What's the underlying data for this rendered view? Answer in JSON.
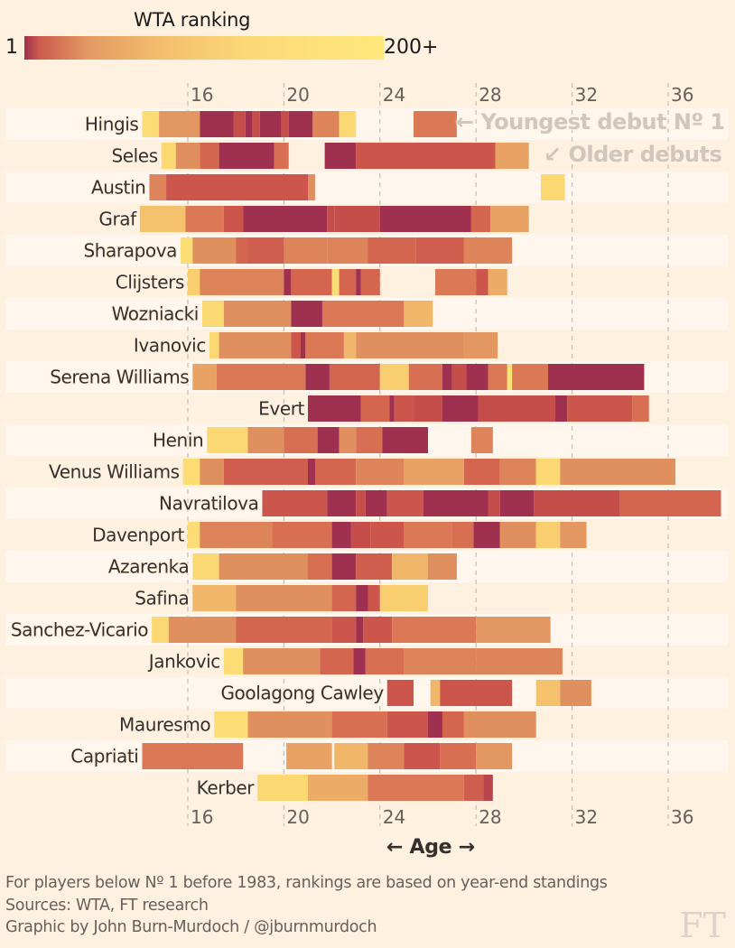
{
  "legend": {
    "title": "WTA ranking",
    "min_label": "1",
    "max_label": "200+"
  },
  "chart_data": {
    "type": "heatmap",
    "title": "WTA ranking",
    "xlabel": "← Age →",
    "ylabel": "",
    "x_ticks": [
      16,
      20,
      24,
      28,
      32,
      36
    ],
    "x_range": [
      12.9,
      38.9
    ],
    "grid": true,
    "color_scale": {
      "min_label": "1",
      "max_label": "200+",
      "colors": [
        "#a0304f",
        "#c9514a",
        "#d76b52",
        "#e08f5e",
        "#edae68",
        "#fbd671",
        "#fee77a"
      ]
    },
    "value_note": "rank level 0 = No 1 (darkest), 1 = 200+ (palest)",
    "players": [
      {
        "name": "Hingis",
        "segments": [
          [
            14.1,
            14.8,
            0.9
          ],
          [
            14.8,
            16.5,
            0.55
          ],
          [
            16.5,
            17.9,
            0.0
          ],
          [
            17.9,
            18.4,
            0.15
          ],
          [
            18.4,
            18.7,
            0.0
          ],
          [
            18.7,
            19.0,
            0.15
          ],
          [
            19.0,
            19.9,
            0.0
          ],
          [
            19.9,
            20.2,
            0.15
          ],
          [
            20.2,
            21.2,
            0.0
          ],
          [
            21.2,
            22.3,
            0.45
          ],
          [
            22.3,
            23.0,
            0.85
          ],
          [
            25.4,
            27.2,
            0.4
          ]
        ]
      },
      {
        "name": "Seles",
        "segments": [
          [
            14.9,
            15.5,
            0.85
          ],
          [
            15.5,
            16.5,
            0.5
          ],
          [
            16.5,
            17.3,
            0.3
          ],
          [
            17.3,
            19.6,
            0.0
          ],
          [
            19.6,
            20.2,
            0.35
          ],
          [
            21.7,
            23.0,
            0.0
          ],
          [
            23.0,
            28.8,
            0.2
          ],
          [
            28.8,
            30.2,
            0.6
          ]
        ]
      },
      {
        "name": "Austin",
        "segments": [
          [
            14.4,
            15.1,
            0.45
          ],
          [
            15.1,
            21.0,
            0.2
          ],
          [
            21.0,
            21.3,
            0.5
          ],
          [
            30.7,
            31.7,
            0.85
          ]
        ]
      },
      {
        "name": "Graf",
        "segments": [
          [
            14.0,
            15.9,
            0.75
          ],
          [
            15.9,
            17.5,
            0.4
          ],
          [
            17.5,
            18.3,
            0.2
          ],
          [
            18.3,
            21.8,
            0.0
          ],
          [
            21.8,
            22.1,
            0.15
          ],
          [
            22.1,
            24.0,
            0.15
          ],
          [
            24.0,
            26.0,
            0.0
          ],
          [
            26.0,
            27.8,
            0.0
          ],
          [
            27.8,
            28.6,
            0.3
          ],
          [
            28.6,
            30.2,
            0.6
          ]
        ]
      },
      {
        "name": "Sharapova",
        "segments": [
          [
            15.7,
            16.2,
            0.9
          ],
          [
            16.2,
            18.0,
            0.5
          ],
          [
            18.0,
            18.5,
            0.3
          ],
          [
            18.5,
            20.0,
            0.25
          ],
          [
            20.0,
            21.8,
            0.45
          ],
          [
            21.8,
            23.5,
            0.45
          ],
          [
            23.5,
            25.5,
            0.3
          ],
          [
            25.5,
            27.5,
            0.25
          ],
          [
            27.5,
            29.5,
            0.45
          ]
        ]
      },
      {
        "name": "Clijsters",
        "segments": [
          [
            16.0,
            16.5,
            0.8
          ],
          [
            16.5,
            20.0,
            0.45
          ],
          [
            20.0,
            20.3,
            0.0
          ],
          [
            20.3,
            22.0,
            0.3
          ],
          [
            22.0,
            22.3,
            0.9
          ],
          [
            22.3,
            23.0,
            0.3
          ],
          [
            23.0,
            23.2,
            0.0
          ],
          [
            23.2,
            24.0,
            0.3
          ],
          [
            26.3,
            28.0,
            0.4
          ],
          [
            28.0,
            28.5,
            0.2
          ],
          [
            28.5,
            29.3,
            0.65
          ]
        ]
      },
      {
        "name": "Wozniacki",
        "segments": [
          [
            16.6,
            17.5,
            0.85
          ],
          [
            17.5,
            20.3,
            0.5
          ],
          [
            20.3,
            21.6,
            0.0
          ],
          [
            21.6,
            25.0,
            0.4
          ],
          [
            25.0,
            26.2,
            0.7
          ]
        ]
      },
      {
        "name": "Ivanovic",
        "segments": [
          [
            16.9,
            17.3,
            0.85
          ],
          [
            17.3,
            20.3,
            0.5
          ],
          [
            20.3,
            20.7,
            0.2
          ],
          [
            20.7,
            20.9,
            0.0
          ],
          [
            20.9,
            22.5,
            0.4
          ],
          [
            22.5,
            23.0,
            0.7
          ],
          [
            23.0,
            27.5,
            0.5
          ],
          [
            27.5,
            28.9,
            0.55
          ]
        ]
      },
      {
        "name": "Serena Williams",
        "segments": [
          [
            16.2,
            17.2,
            0.6
          ],
          [
            17.2,
            20.9,
            0.4
          ],
          [
            20.9,
            21.9,
            0.0
          ],
          [
            21.9,
            24.0,
            0.3
          ],
          [
            24.0,
            25.2,
            0.8
          ],
          [
            25.2,
            26.6,
            0.35
          ],
          [
            26.6,
            27.0,
            0.0
          ],
          [
            27.0,
            27.6,
            0.15
          ],
          [
            27.6,
            28.5,
            0.0
          ],
          [
            28.5,
            29.3,
            0.4
          ],
          [
            29.3,
            29.5,
            0.95
          ],
          [
            29.5,
            31.0,
            0.4
          ],
          [
            31.0,
            35.0,
            0.0
          ]
        ]
      },
      {
        "name": "Evert",
        "segments": [
          [
            21.0,
            23.2,
            0.0
          ],
          [
            23.2,
            24.4,
            0.3
          ],
          [
            24.4,
            24.6,
            0.0
          ],
          [
            24.6,
            25.4,
            0.2
          ],
          [
            25.4,
            26.6,
            0.15
          ],
          [
            26.6,
            28.1,
            0.0
          ],
          [
            28.1,
            31.3,
            0.15
          ],
          [
            31.3,
            31.8,
            0.0
          ],
          [
            31.8,
            34.5,
            0.2
          ],
          [
            34.5,
            35.2,
            0.35
          ]
        ]
      },
      {
        "name": "Henin",
        "segments": [
          [
            16.8,
            18.5,
            0.85
          ],
          [
            18.5,
            20.0,
            0.5
          ],
          [
            20.0,
            21.4,
            0.35
          ],
          [
            21.4,
            22.3,
            0.0
          ],
          [
            22.3,
            23.0,
            0.5
          ],
          [
            23.0,
            24.1,
            0.35
          ],
          [
            24.1,
            26.0,
            0.0
          ],
          [
            27.8,
            28.7,
            0.45
          ]
        ]
      },
      {
        "name": "Venus Williams",
        "segments": [
          [
            15.8,
            16.5,
            0.9
          ],
          [
            16.5,
            17.5,
            0.5
          ],
          [
            17.5,
            21.0,
            0.25
          ],
          [
            21.0,
            21.3,
            0.0
          ],
          [
            21.3,
            23.0,
            0.3
          ],
          [
            23.0,
            25.0,
            0.45
          ],
          [
            25.0,
            27.5,
            0.6
          ],
          [
            27.5,
            29.0,
            0.3
          ],
          [
            29.0,
            30.5,
            0.45
          ],
          [
            30.5,
            31.5,
            0.85
          ],
          [
            31.5,
            36.3,
            0.5
          ]
        ]
      },
      {
        "name": "Navratilova",
        "segments": [
          [
            19.1,
            21.8,
            0.2
          ],
          [
            21.8,
            23.0,
            0.0
          ],
          [
            23.0,
            23.4,
            0.15
          ],
          [
            23.4,
            24.3,
            0.0
          ],
          [
            24.3,
            25.8,
            0.2
          ],
          [
            25.8,
            28.5,
            0.0
          ],
          [
            28.5,
            29.0,
            0.15
          ],
          [
            29.0,
            30.4,
            0.0
          ],
          [
            30.4,
            34.0,
            0.15
          ],
          [
            34.0,
            38.2,
            0.3
          ]
        ]
      },
      {
        "name": "Davenport",
        "segments": [
          [
            16.0,
            16.5,
            0.9
          ],
          [
            16.5,
            19.5,
            0.45
          ],
          [
            19.5,
            22.0,
            0.35
          ],
          [
            22.0,
            22.8,
            0.0
          ],
          [
            22.8,
            23.6,
            0.15
          ],
          [
            23.6,
            25.0,
            0.2
          ],
          [
            25.0,
            27.0,
            0.4
          ],
          [
            27.0,
            27.9,
            0.35
          ],
          [
            27.9,
            29.0,
            0.0
          ],
          [
            29.0,
            30.5,
            0.5
          ],
          [
            30.5,
            31.5,
            0.8
          ],
          [
            31.5,
            32.6,
            0.55
          ]
        ]
      },
      {
        "name": "Azarenka",
        "segments": [
          [
            16.2,
            17.3,
            0.85
          ],
          [
            17.3,
            21.0,
            0.5
          ],
          [
            21.0,
            22.0,
            0.35
          ],
          [
            22.0,
            23.0,
            0.0
          ],
          [
            23.0,
            24.5,
            0.25
          ],
          [
            24.5,
            26.0,
            0.7
          ],
          [
            26.0,
            27.2,
            0.5
          ]
        ]
      },
      {
        "name": "Safina",
        "segments": [
          [
            16.2,
            18.0,
            0.7
          ],
          [
            18.0,
            22.0,
            0.5
          ],
          [
            22.0,
            23.0,
            0.3
          ],
          [
            23.0,
            23.5,
            0.0
          ],
          [
            23.5,
            24.0,
            0.2
          ],
          [
            24.0,
            26.0,
            0.8
          ]
        ]
      },
      {
        "name": "Sanchez-Vicario",
        "segments": [
          [
            14.5,
            15.2,
            0.85
          ],
          [
            15.2,
            18.0,
            0.5
          ],
          [
            18.0,
            22.0,
            0.3
          ],
          [
            22.0,
            23.0,
            0.2
          ],
          [
            23.0,
            23.3,
            0.0
          ],
          [
            23.3,
            24.5,
            0.2
          ],
          [
            24.5,
            28.0,
            0.4
          ],
          [
            28.0,
            31.1,
            0.55
          ]
        ]
      },
      {
        "name": "Jankovic",
        "segments": [
          [
            17.5,
            18.3,
            0.9
          ],
          [
            18.3,
            21.5,
            0.5
          ],
          [
            21.5,
            22.9,
            0.3
          ],
          [
            22.9,
            23.4,
            0.0
          ],
          [
            23.4,
            25.0,
            0.35
          ],
          [
            25.0,
            28.0,
            0.45
          ],
          [
            28.0,
            31.6,
            0.45
          ]
        ]
      },
      {
        "name": "Goolagong Cawley",
        "segments": [
          [
            24.3,
            25.4,
            0.2
          ],
          [
            26.1,
            26.5,
            0.7
          ],
          [
            26.5,
            29.5,
            0.2
          ],
          [
            30.5,
            31.5,
            0.75
          ],
          [
            31.5,
            32.8,
            0.5
          ]
        ]
      },
      {
        "name": "Mauresmo",
        "segments": [
          [
            17.1,
            18.5,
            0.9
          ],
          [
            18.5,
            22.0,
            0.5
          ],
          [
            22.0,
            24.3,
            0.35
          ],
          [
            24.3,
            26.0,
            0.2
          ],
          [
            26.0,
            26.6,
            0.0
          ],
          [
            26.6,
            27.5,
            0.3
          ],
          [
            27.5,
            30.5,
            0.5
          ]
        ]
      },
      {
        "name": "Capriati",
        "segments": [
          [
            14.1,
            18.3,
            0.4
          ],
          [
            20.1,
            22.0,
            0.6
          ],
          [
            22.1,
            23.5,
            0.7
          ],
          [
            23.5,
            25.0,
            0.45
          ],
          [
            25.0,
            26.5,
            0.2
          ],
          [
            26.5,
            28.0,
            0.35
          ],
          [
            28.0,
            29.5,
            0.55
          ]
        ]
      },
      {
        "name": "Kerber",
        "segments": [
          [
            18.9,
            21.0,
            0.85
          ],
          [
            21.0,
            23.5,
            0.65
          ],
          [
            23.5,
            27.5,
            0.4
          ],
          [
            27.5,
            28.3,
            0.25
          ],
          [
            28.3,
            28.7,
            0.1
          ]
        ]
      }
    ],
    "annotations": [
      {
        "text": "← Youngest debut Nº 1",
        "target": "Hingis"
      },
      {
        "text": "↙ Older debuts",
        "target": "Seles"
      }
    ]
  },
  "axis": {
    "ticks": [
      "16",
      "20",
      "24",
      "28",
      "32",
      "36"
    ],
    "title": "← Age →"
  },
  "notes": [
    "For players below Nº 1 before 1983, rankings are based on year-end standings",
    "Sources: WTA, FT research",
    "Graphic by John Burn-Murdoch / @jburnmurdoch"
  ],
  "logo": "FT"
}
